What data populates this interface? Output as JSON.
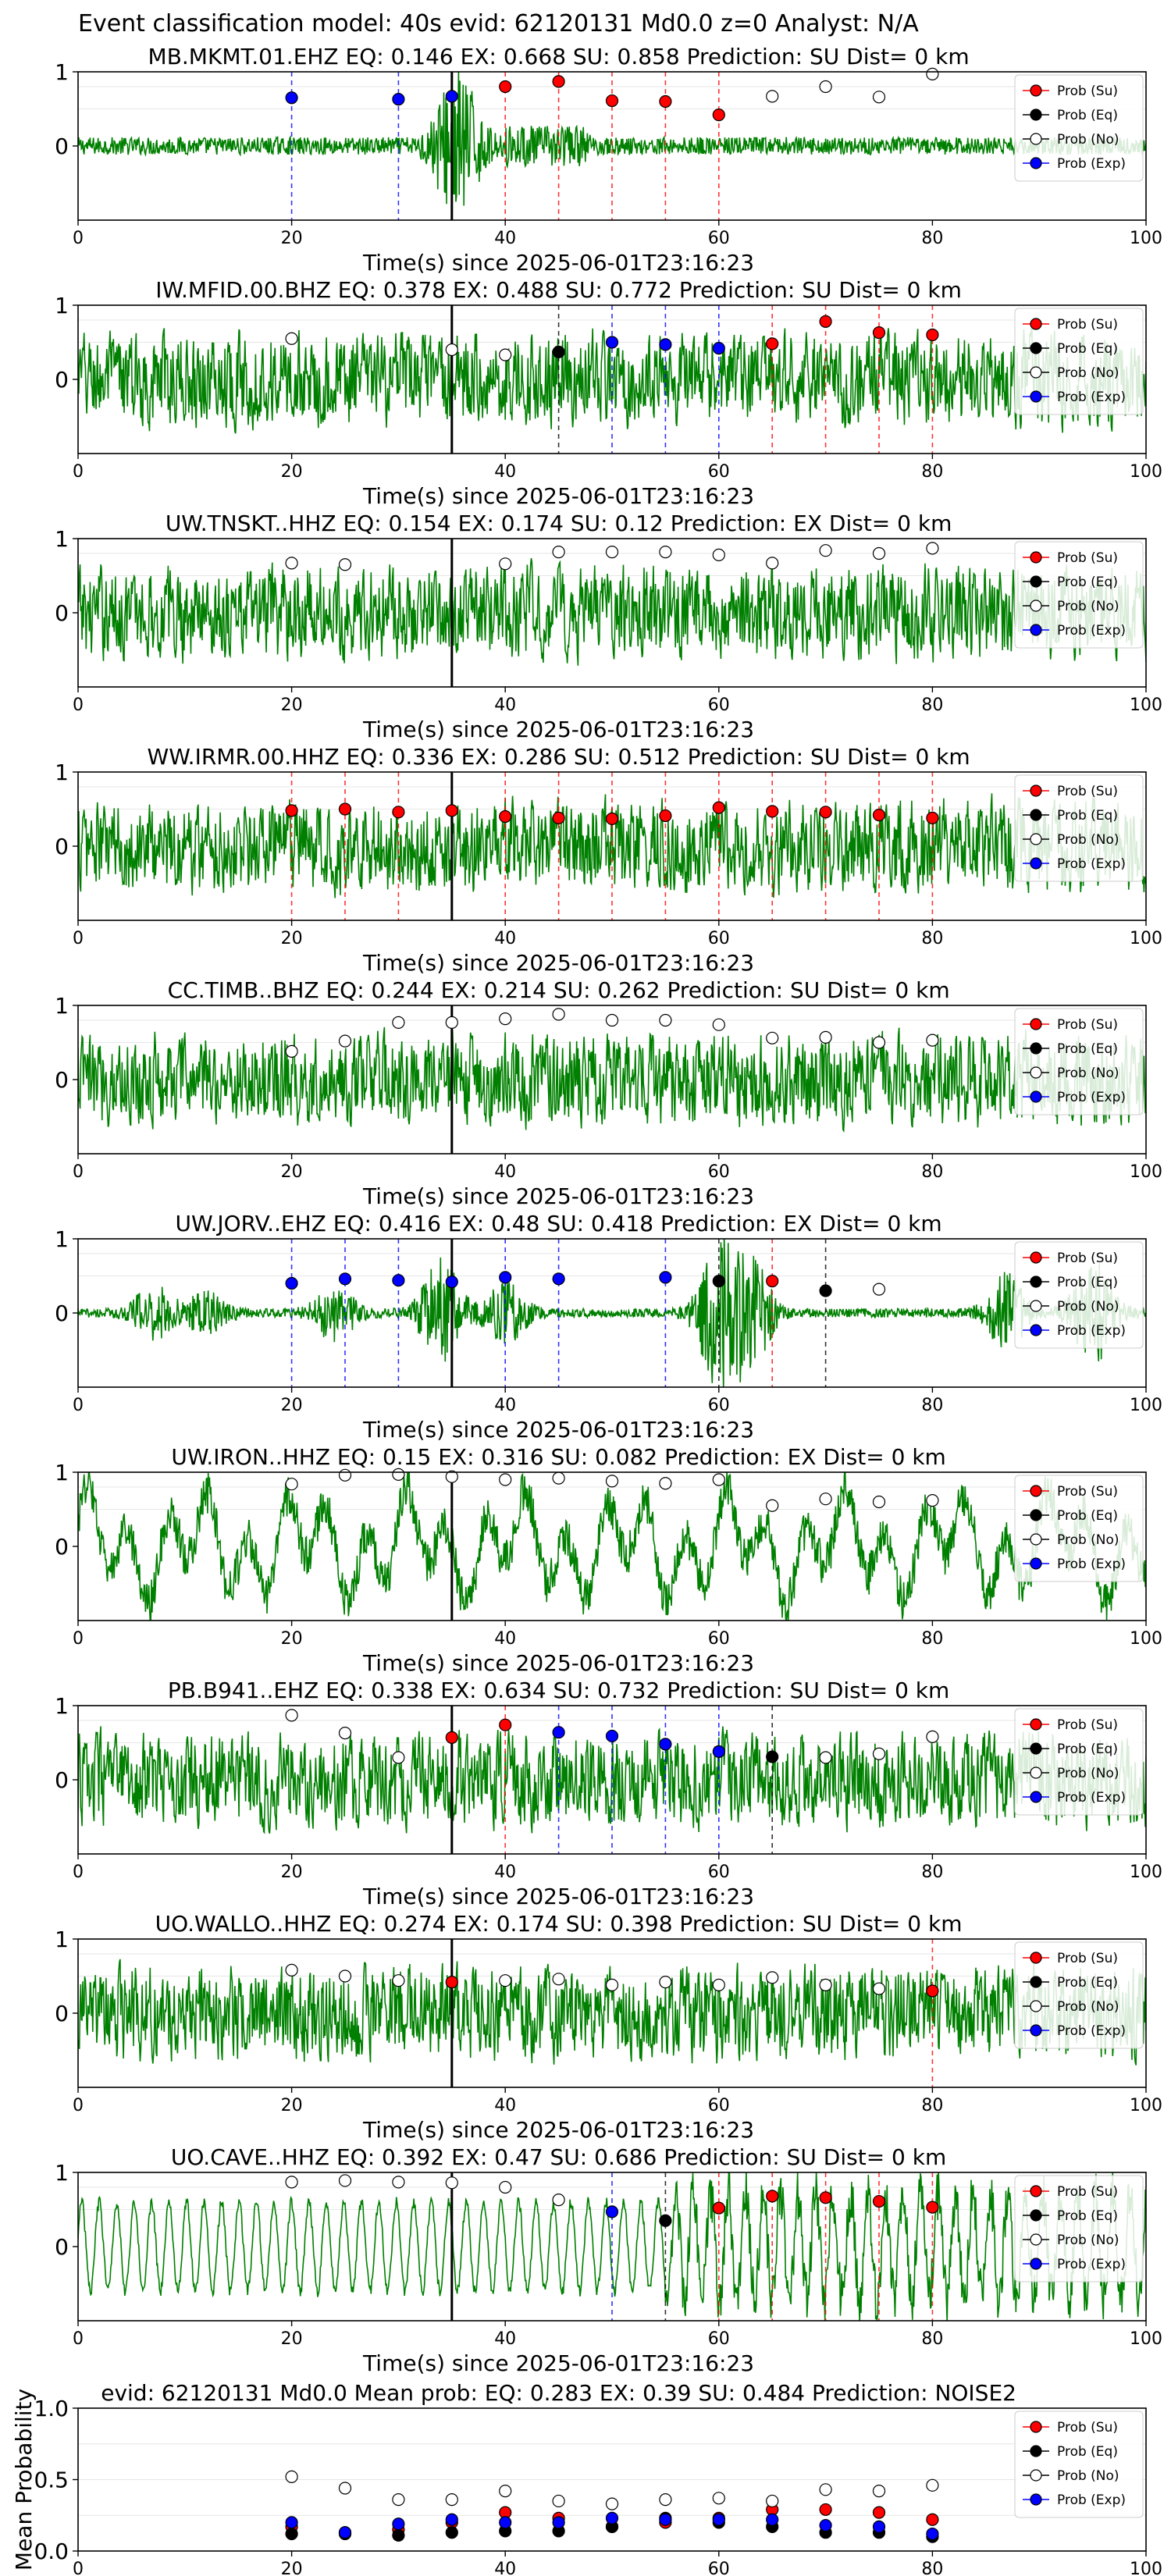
{
  "figure": {
    "suptitle": "Event classification model: 40s evid: 62120131 Md0.0 z=0 Analyst: N/A"
  },
  "legend_labels": [
    "Prob (Su)",
    "Prob (Eq)",
    "Prob (No)",
    "Prob (Exp)"
  ],
  "colors": {
    "waveform": "#008000",
    "su": "#ff0000",
    "eq": "#000000",
    "no": "#ffffff",
    "exp": "#0000ff",
    "origin_line": "#000000"
  },
  "chart_data": [
    {
      "type": "line",
      "title": "MB.MKMT.01.EHZ   EQ: 0.146  EX: 0.668  SU: 0.858   Prediction: SU    Dist= 0 km",
      "xlabel": "Time(s) since 2025-06-01T23:16:23",
      "xlim": [
        0,
        100
      ],
      "ylim": [
        -1,
        1
      ],
      "xticks": [
        0,
        20,
        40,
        60,
        80,
        100
      ],
      "yticks": [
        1,
        0
      ],
      "waveform_style": "burst",
      "origin_time": 35,
      "prob_points": [
        {
          "x": 20,
          "y": 0.65,
          "class": "exp"
        },
        {
          "x": 30,
          "y": 0.63,
          "class": "exp"
        },
        {
          "x": 35,
          "y": 0.67,
          "class": "exp"
        },
        {
          "x": 40,
          "y": 0.8,
          "class": "su"
        },
        {
          "x": 45,
          "y": 0.87,
          "class": "su"
        },
        {
          "x": 50,
          "y": 0.61,
          "class": "su"
        },
        {
          "x": 55,
          "y": 0.6,
          "class": "su"
        },
        {
          "x": 60,
          "y": 0.42,
          "class": "su"
        },
        {
          "x": 65,
          "y": 0.67,
          "class": "no"
        },
        {
          "x": 70,
          "y": 0.8,
          "class": "no"
        },
        {
          "x": 75,
          "y": 0.66,
          "class": "no"
        },
        {
          "x": 80,
          "y": 0.97,
          "class": "no"
        }
      ]
    },
    {
      "type": "line",
      "title": "IW.MFID.00.BHZ   EQ: 0.378  EX: 0.488  SU: 0.772   Prediction: SU    Dist= 0 km",
      "xlabel": "Time(s) since 2025-06-01T23:16:23",
      "xlim": [
        0,
        100
      ],
      "ylim": [
        -1,
        1
      ],
      "xticks": [
        0,
        20,
        40,
        60,
        80,
        100
      ],
      "yticks": [
        1,
        0
      ],
      "waveform_style": "noise",
      "origin_time": 35,
      "prob_points": [
        {
          "x": 20,
          "y": 0.55,
          "class": "no"
        },
        {
          "x": 35,
          "y": 0.4,
          "class": "no"
        },
        {
          "x": 40,
          "y": 0.33,
          "class": "no"
        },
        {
          "x": 45,
          "y": 0.37,
          "class": "eq"
        },
        {
          "x": 50,
          "y": 0.5,
          "class": "exp"
        },
        {
          "x": 55,
          "y": 0.47,
          "class": "exp"
        },
        {
          "x": 60,
          "y": 0.42,
          "class": "exp"
        },
        {
          "x": 65,
          "y": 0.48,
          "class": "su"
        },
        {
          "x": 70,
          "y": 0.78,
          "class": "su"
        },
        {
          "x": 75,
          "y": 0.63,
          "class": "su"
        },
        {
          "x": 80,
          "y": 0.6,
          "class": "su"
        }
      ]
    },
    {
      "type": "line",
      "title": "UW.TNSKT..HHZ   EQ: 0.154  EX: 0.174  SU: 0.12   Prediction: EX    Dist= 0 km",
      "xlabel": "Time(s) since 2025-06-01T23:16:23",
      "xlim": [
        0,
        100
      ],
      "ylim": [
        -1,
        1
      ],
      "xticks": [
        0,
        20,
        40,
        60,
        80,
        100
      ],
      "yticks": [
        1,
        0
      ],
      "waveform_style": "noise",
      "origin_time": 35,
      "prob_points": [
        {
          "x": 20,
          "y": 0.67,
          "class": "no"
        },
        {
          "x": 25,
          "y": 0.65,
          "class": "no"
        },
        {
          "x": 40,
          "y": 0.66,
          "class": "no"
        },
        {
          "x": 45,
          "y": 0.82,
          "class": "no"
        },
        {
          "x": 50,
          "y": 0.82,
          "class": "no"
        },
        {
          "x": 55,
          "y": 0.82,
          "class": "no"
        },
        {
          "x": 60,
          "y": 0.78,
          "class": "no"
        },
        {
          "x": 65,
          "y": 0.67,
          "class": "no"
        },
        {
          "x": 70,
          "y": 0.84,
          "class": "no"
        },
        {
          "x": 75,
          "y": 0.8,
          "class": "no"
        },
        {
          "x": 80,
          "y": 0.87,
          "class": "no"
        }
      ]
    },
    {
      "type": "line",
      "title": "WW.IRMR.00.HHZ   EQ: 0.336  EX: 0.286  SU: 0.512   Prediction: SU    Dist= 0 km",
      "xlabel": "Time(s) since 2025-06-01T23:16:23",
      "xlim": [
        0,
        100
      ],
      "ylim": [
        -1,
        1
      ],
      "xticks": [
        0,
        20,
        40,
        60,
        80,
        100
      ],
      "yticks": [
        1,
        0
      ],
      "waveform_style": "noise",
      "origin_time": 35,
      "prob_points": [
        {
          "x": 20,
          "y": 0.48,
          "class": "su"
        },
        {
          "x": 25,
          "y": 0.5,
          "class": "su"
        },
        {
          "x": 30,
          "y": 0.46,
          "class": "su"
        },
        {
          "x": 35,
          "y": 0.48,
          "class": "su"
        },
        {
          "x": 40,
          "y": 0.4,
          "class": "su"
        },
        {
          "x": 45,
          "y": 0.38,
          "class": "su"
        },
        {
          "x": 50,
          "y": 0.37,
          "class": "su"
        },
        {
          "x": 55,
          "y": 0.41,
          "class": "su"
        },
        {
          "x": 60,
          "y": 0.52,
          "class": "su"
        },
        {
          "x": 65,
          "y": 0.47,
          "class": "su"
        },
        {
          "x": 70,
          "y": 0.46,
          "class": "su"
        },
        {
          "x": 75,
          "y": 0.42,
          "class": "su"
        },
        {
          "x": 80,
          "y": 0.38,
          "class": "su"
        }
      ]
    },
    {
      "type": "line",
      "title": "CC.TIMB..BHZ   EQ: 0.244  EX: 0.214  SU: 0.262   Prediction: SU    Dist= 0 km",
      "xlabel": "Time(s) since 2025-06-01T23:16:23",
      "xlim": [
        0,
        100
      ],
      "ylim": [
        -1,
        1
      ],
      "xticks": [
        0,
        20,
        40,
        60,
        80,
        100
      ],
      "yticks": [
        1,
        0
      ],
      "waveform_style": "noise",
      "origin_time": 35,
      "prob_points": [
        {
          "x": 20,
          "y": 0.38,
          "class": "no"
        },
        {
          "x": 25,
          "y": 0.52,
          "class": "no"
        },
        {
          "x": 30,
          "y": 0.77,
          "class": "no"
        },
        {
          "x": 35,
          "y": 0.77,
          "class": "no"
        },
        {
          "x": 40,
          "y": 0.82,
          "class": "no"
        },
        {
          "x": 45,
          "y": 0.88,
          "class": "no"
        },
        {
          "x": 50,
          "y": 0.8,
          "class": "no"
        },
        {
          "x": 55,
          "y": 0.8,
          "class": "no"
        },
        {
          "x": 60,
          "y": 0.74,
          "class": "no"
        },
        {
          "x": 65,
          "y": 0.56,
          "class": "no"
        },
        {
          "x": 70,
          "y": 0.57,
          "class": "no"
        },
        {
          "x": 75,
          "y": 0.5,
          "class": "no"
        },
        {
          "x": 80,
          "y": 0.53,
          "class": "no"
        }
      ]
    },
    {
      "type": "line",
      "title": "UW.JORV..EHZ   EQ: 0.416  EX: 0.48  SU: 0.418   Prediction: EX    Dist= 0 km",
      "xlabel": "Time(s) since 2025-06-01T23:16:23",
      "xlim": [
        0,
        100
      ],
      "ylim": [
        -1,
        1
      ],
      "xticks": [
        0,
        20,
        40,
        60,
        80,
        100
      ],
      "yticks": [
        1,
        0
      ],
      "waveform_style": "quiet_bursts",
      "origin_time": 35,
      "prob_points": [
        {
          "x": 20,
          "y": 0.4,
          "class": "exp"
        },
        {
          "x": 25,
          "y": 0.46,
          "class": "exp"
        },
        {
          "x": 30,
          "y": 0.44,
          "class": "exp"
        },
        {
          "x": 35,
          "y": 0.42,
          "class": "exp"
        },
        {
          "x": 40,
          "y": 0.48,
          "class": "exp"
        },
        {
          "x": 45,
          "y": 0.46,
          "class": "exp"
        },
        {
          "x": 55,
          "y": 0.48,
          "class": "exp"
        },
        {
          "x": 60,
          "y": 0.43,
          "class": "eq"
        },
        {
          "x": 65,
          "y": 0.43,
          "class": "su"
        },
        {
          "x": 70,
          "y": 0.3,
          "class": "eq"
        },
        {
          "x": 75,
          "y": 0.32,
          "class": "no"
        }
      ]
    },
    {
      "type": "line",
      "title": "UW.IRON..HHZ   EQ: 0.15  EX: 0.316  SU: 0.082   Prediction: EX    Dist= 0 km",
      "xlabel": "Time(s) since 2025-06-01T23:16:23",
      "xlim": [
        0,
        100
      ],
      "ylim": [
        -1,
        1
      ],
      "xticks": [
        0,
        20,
        40,
        60,
        80,
        100
      ],
      "yticks": [
        1,
        0
      ],
      "waveform_style": "lowfreq",
      "origin_time": 35,
      "prob_points": [
        {
          "x": 20,
          "y": 0.84,
          "class": "no"
        },
        {
          "x": 25,
          "y": 0.96,
          "class": "no"
        },
        {
          "x": 30,
          "y": 0.97,
          "class": "no"
        },
        {
          "x": 35,
          "y": 0.94,
          "class": "no"
        },
        {
          "x": 40,
          "y": 0.9,
          "class": "no"
        },
        {
          "x": 45,
          "y": 0.92,
          "class": "no"
        },
        {
          "x": 50,
          "y": 0.88,
          "class": "no"
        },
        {
          "x": 55,
          "y": 0.85,
          "class": "no"
        },
        {
          "x": 60,
          "y": 0.9,
          "class": "no"
        },
        {
          "x": 65,
          "y": 0.55,
          "class": "no"
        },
        {
          "x": 70,
          "y": 0.64,
          "class": "no"
        },
        {
          "x": 75,
          "y": 0.6,
          "class": "no"
        },
        {
          "x": 80,
          "y": 0.62,
          "class": "no"
        }
      ]
    },
    {
      "type": "line",
      "title": "PB.B941..EHZ   EQ: 0.338  EX: 0.634  SU: 0.732   Prediction: SU    Dist= 0 km",
      "xlabel": "Time(s) since 2025-06-01T23:16:23",
      "xlim": [
        0,
        100
      ],
      "ylim": [
        -1,
        1
      ],
      "xticks": [
        0,
        20,
        40,
        60,
        80,
        100
      ],
      "yticks": [
        1,
        0
      ],
      "waveform_style": "noise",
      "origin_time": 35,
      "prob_points": [
        {
          "x": 20,
          "y": 0.87,
          "class": "no"
        },
        {
          "x": 25,
          "y": 0.63,
          "class": "no"
        },
        {
          "x": 30,
          "y": 0.3,
          "class": "no"
        },
        {
          "x": 35,
          "y": 0.57,
          "class": "su"
        },
        {
          "x": 40,
          "y": 0.74,
          "class": "su"
        },
        {
          "x": 45,
          "y": 0.64,
          "class": "exp"
        },
        {
          "x": 50,
          "y": 0.59,
          "class": "exp"
        },
        {
          "x": 55,
          "y": 0.48,
          "class": "exp"
        },
        {
          "x": 60,
          "y": 0.38,
          "class": "exp"
        },
        {
          "x": 65,
          "y": 0.31,
          "class": "eq"
        },
        {
          "x": 70,
          "y": 0.3,
          "class": "no"
        },
        {
          "x": 75,
          "y": 0.35,
          "class": "no"
        },
        {
          "x": 80,
          "y": 0.58,
          "class": "no"
        }
      ]
    },
    {
      "type": "line",
      "title": "UO.WALLO..HHZ   EQ: 0.274  EX: 0.174  SU: 0.398   Prediction: SU    Dist= 0 km",
      "xlabel": "Time(s) since 2025-06-01T23:16:23",
      "xlim": [
        0,
        100
      ],
      "ylim": [
        -1,
        1
      ],
      "xticks": [
        0,
        20,
        40,
        60,
        80,
        100
      ],
      "yticks": [
        1,
        0
      ],
      "waveform_style": "noise",
      "origin_time": 35,
      "prob_points": [
        {
          "x": 20,
          "y": 0.58,
          "class": "no"
        },
        {
          "x": 25,
          "y": 0.5,
          "class": "no"
        },
        {
          "x": 30,
          "y": 0.44,
          "class": "no"
        },
        {
          "x": 35,
          "y": 0.42,
          "class": "su"
        },
        {
          "x": 40,
          "y": 0.44,
          "class": "no"
        },
        {
          "x": 45,
          "y": 0.46,
          "class": "no"
        },
        {
          "x": 50,
          "y": 0.38,
          "class": "no"
        },
        {
          "x": 55,
          "y": 0.42,
          "class": "no"
        },
        {
          "x": 60,
          "y": 0.38,
          "class": "no"
        },
        {
          "x": 65,
          "y": 0.48,
          "class": "no"
        },
        {
          "x": 70,
          "y": 0.38,
          "class": "no"
        },
        {
          "x": 75,
          "y": 0.33,
          "class": "no"
        },
        {
          "x": 80,
          "y": 0.3,
          "class": "su"
        }
      ]
    },
    {
      "type": "line",
      "title": "UO.CAVE..HHZ   EQ: 0.392  EX: 0.47  SU: 0.686   Prediction: SU    Dist= 0 km",
      "xlabel": "Time(s) since 2025-06-01T23:16:23",
      "xlim": [
        0,
        100
      ],
      "ylim": [
        -1,
        1
      ],
      "xticks": [
        0,
        20,
        40,
        60,
        80,
        100
      ],
      "yticks": [
        1,
        0
      ],
      "waveform_style": "oscillation",
      "origin_time": 35,
      "prob_points": [
        {
          "x": 20,
          "y": 0.87,
          "class": "no"
        },
        {
          "x": 25,
          "y": 0.89,
          "class": "no"
        },
        {
          "x": 30,
          "y": 0.87,
          "class": "no"
        },
        {
          "x": 35,
          "y": 0.86,
          "class": "no"
        },
        {
          "x": 40,
          "y": 0.8,
          "class": "no"
        },
        {
          "x": 45,
          "y": 0.63,
          "class": "no"
        },
        {
          "x": 50,
          "y": 0.47,
          "class": "exp"
        },
        {
          "x": 55,
          "y": 0.35,
          "class": "eq"
        },
        {
          "x": 60,
          "y": 0.52,
          "class": "su"
        },
        {
          "x": 65,
          "y": 0.68,
          "class": "su"
        },
        {
          "x": 70,
          "y": 0.66,
          "class": "su"
        },
        {
          "x": 75,
          "y": 0.61,
          "class": "su"
        },
        {
          "x": 80,
          "y": 0.53,
          "class": "su"
        }
      ]
    },
    {
      "type": "scatter",
      "title": "evid: 62120131  Md0.0   Mean prob:   EQ: 0.283  EX: 0.39  SU: 0.484   Prediction: NOISE2",
      "xlabel": "",
      "ylabel": "Mean Probability",
      "xlim": [
        0,
        100
      ],
      "ylim": [
        0,
        1
      ],
      "xticks": [
        0,
        20,
        40,
        60,
        80,
        100
      ],
      "yticks": [
        1.0,
        0.5,
        0.0
      ],
      "waveform_style": "none",
      "series": [
        {
          "name": "Prob (Su)",
          "class": "su",
          "x": [
            20,
            25,
            30,
            35,
            40,
            45,
            50,
            55,
            60,
            65,
            70,
            75,
            80
          ],
          "y": [
            0.17,
            0.13,
            0.15,
            0.2,
            0.27,
            0.23,
            0.17,
            0.2,
            0.23,
            0.29,
            0.29,
            0.27,
            0.22
          ]
        },
        {
          "name": "Prob (Eq)",
          "class": "eq",
          "x": [
            20,
            25,
            30,
            35,
            40,
            45,
            50,
            55,
            60,
            65,
            70,
            75,
            80
          ],
          "y": [
            0.12,
            0.12,
            0.11,
            0.13,
            0.14,
            0.14,
            0.17,
            0.23,
            0.2,
            0.17,
            0.13,
            0.13,
            0.1
          ]
        },
        {
          "name": "Prob (No)",
          "class": "no",
          "x": [
            20,
            25,
            30,
            35,
            40,
            45,
            50,
            55,
            60,
            65,
            70,
            75,
            80
          ],
          "y": [
            0.52,
            0.44,
            0.36,
            0.36,
            0.42,
            0.35,
            0.33,
            0.36,
            0.37,
            0.35,
            0.43,
            0.42,
            0.46
          ]
        },
        {
          "name": "Prob (Exp)",
          "class": "exp",
          "x": [
            20,
            25,
            30,
            35,
            40,
            45,
            50,
            55,
            60,
            65,
            70,
            75,
            80
          ],
          "y": [
            0.2,
            0.13,
            0.19,
            0.22,
            0.2,
            0.2,
            0.23,
            0.22,
            0.22,
            0.22,
            0.18,
            0.17,
            0.12
          ]
        }
      ]
    }
  ]
}
